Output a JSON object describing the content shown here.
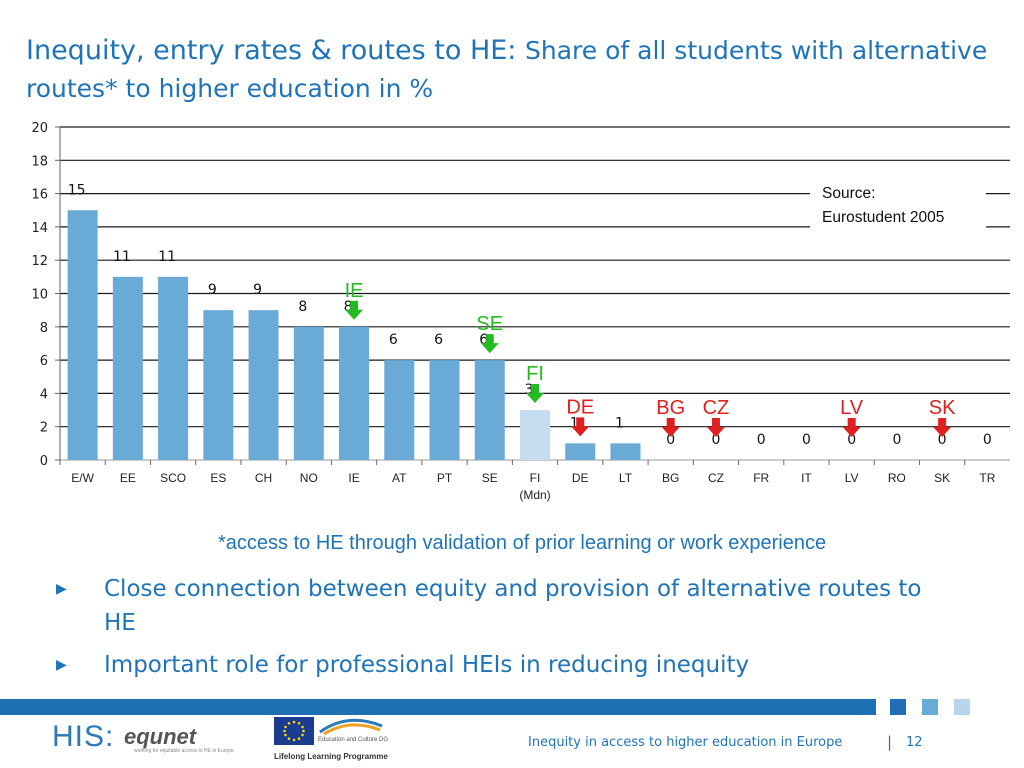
{
  "slide": {
    "title_main": "Inequity, entry rates & routes to HE: ",
    "title_sub": "Share of all students with alternative routes* to higher education in %",
    "footnote": "*access to HE through validation of prior learning or work experience",
    "bullets": [
      "Close connection between equity and provision of alternative routes to HE",
      "Important role for professional HEIs in reducing inequity"
    ],
    "footer_text": "Inequity in access to higher education in Europe",
    "footer_separator": "|",
    "page_number": "12",
    "logo_his": "HIS:",
    "logo_equnet": "equnet",
    "logo_equnet_tagline": "working for equitable access to HE in Europe",
    "eu_program_text": "Education and Culture DG",
    "llp_text": "Lifelong Learning Programme",
    "band_color": "#1f6fb5",
    "square_colors": [
      "#1f6fb5",
      "#6aaad6",
      "#b7d6ee"
    ]
  },
  "chart_data": {
    "type": "bar",
    "categories": [
      "E/W",
      "EE",
      "SCO",
      "ES",
      "CH",
      "NO",
      "IE",
      "AT",
      "PT",
      "SE",
      "FI",
      "DE",
      "LT",
      "BG",
      "CZ",
      "FR",
      "IT",
      "LV",
      "RO",
      "SK",
      "TR"
    ],
    "category_sublabels": {
      "FI": "(Mdn)"
    },
    "values": [
      15,
      11,
      11,
      9,
      9,
      8,
      8,
      6,
      6,
      6,
      3,
      1,
      1,
      0,
      0,
      0,
      0,
      0,
      0,
      0,
      0
    ],
    "data_labels": [
      "15",
      "11",
      "11",
      "9",
      "9",
      "8",
      "8",
      "6",
      "6",
      "6",
      "3",
      "1",
      "1",
      "0",
      "0",
      "0",
      "0",
      "0",
      "0",
      "0",
      "0"
    ],
    "ylim": [
      0,
      20
    ],
    "yticks": [
      "0",
      "2",
      "4",
      "6",
      "8",
      "10",
      "12",
      "14",
      "16",
      "18",
      "20"
    ],
    "grid": true,
    "bar_color": "#6aaad6",
    "median_bar_color": "#c6dcf0",
    "median_category": "FI",
    "source_text": [
      "Source:",
      "Eurostudent 2005"
    ],
    "arrow_annotations": [
      {
        "label": "IE",
        "category": "IE",
        "color": "#22bb22"
      },
      {
        "label": "SE",
        "category": "SE",
        "color": "#22bb22"
      },
      {
        "label": "FI",
        "category": "FI",
        "color": "#22bb22"
      },
      {
        "label": "DE",
        "category": "DE",
        "color": "#e02020"
      },
      {
        "label": "BG",
        "category": "BG",
        "color": "#e02020"
      },
      {
        "label": "CZ",
        "category": "CZ",
        "color": "#e02020"
      },
      {
        "label": "LV",
        "category": "LV",
        "color": "#e02020"
      },
      {
        "label": "SK",
        "category": "SK",
        "color": "#e02020"
      }
    ]
  }
}
